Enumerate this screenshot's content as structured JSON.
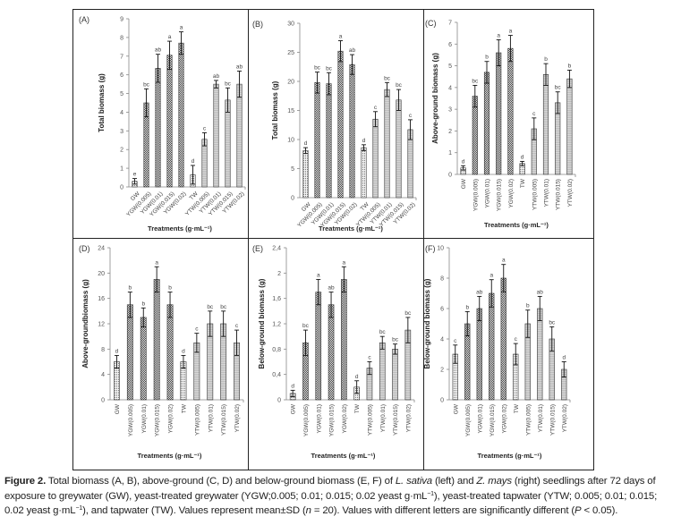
{
  "chart_data": [
    {
      "type": "bar",
      "panel_label": "(A)",
      "ylabel": "Total biomass (g)",
      "xlabel": "Treatments (g·mL⁻¹)",
      "ylim": [
        0,
        9
      ],
      "yticks": [
        "0",
        "1",
        "2",
        "3",
        "4",
        "5",
        "6",
        "7",
        "8",
        "9"
      ],
      "tick_rotation": "diagonal",
      "categories": [
        "GW",
        "YGW(0.005)",
        "YGW(0.01)",
        "YGW(0.015)",
        "YGW(0.02)",
        "TW",
        "YTW(0.005)",
        "YTW(0.01)",
        "YTW(0.015)",
        "YTW(0.02)"
      ],
      "values": [
        0.3,
        4.5,
        6.35,
        7.05,
        7.7,
        0.65,
        2.55,
        5.5,
        4.65,
        5.5
      ],
      "errors": [
        0.15,
        0.75,
        0.75,
        0.75,
        0.6,
        0.5,
        0.35,
        0.2,
        0.65,
        0.7
      ],
      "letters": [
        "e",
        "bc",
        "ab",
        "a",
        "a",
        "d",
        "c",
        "ab",
        "bc",
        "ab"
      ]
    },
    {
      "type": "bar",
      "panel_label": "(B)",
      "ylabel": "Total biomass (g)",
      "xlabel": "Treatments (g·mL⁻¹)",
      "ylim": [
        0,
        30
      ],
      "yticks": [
        "0",
        "5",
        "10",
        "15",
        "20",
        "25",
        "30"
      ],
      "tick_rotation": "diagonal",
      "categories": [
        "GW",
        "YGW(0.005)",
        "YGW(0.01)",
        "YGW(0.015)",
        "YGW(0.02)",
        "TW",
        "YTW(0.005)",
        "YTW(0.01)",
        "YTW(0.015)",
        "YTW(0.02)"
      ],
      "values": [
        8.1,
        19.8,
        19.6,
        25.2,
        22.9,
        8.6,
        13.5,
        18.6,
        16.8,
        11.7
      ],
      "errors": [
        0.5,
        1.8,
        1.9,
        1.8,
        1.7,
        0.5,
        1.3,
        1.2,
        1.8,
        1.7
      ],
      "letters": [
        "d",
        "bc",
        "bc",
        "a",
        "ab",
        "d",
        "c",
        "bc",
        "bc",
        "c"
      ]
    },
    {
      "type": "bar",
      "panel_label": "(C)",
      "ylabel": "Above-ground biomass (g)",
      "xlabel": "Treatments (g·mL⁻¹)",
      "ylim": [
        0,
        7
      ],
      "yticks": [
        "0",
        "1",
        "2",
        "3",
        "4",
        "5",
        "6",
        "7"
      ],
      "tick_rotation": "vertical",
      "categories": [
        "GW",
        "YGW(0.005)",
        "YGW(0.01)",
        "YGW(0.015)",
        "YGW(0.02)",
        "TW",
        "YTW(0.005)",
        "YTW(0.01)",
        "YTW(0.015)",
        "YTW(0.02)"
      ],
      "values": [
        0.3,
        3.6,
        4.7,
        5.6,
        5.8,
        0.5,
        2.1,
        4.6,
        3.3,
        4.4
      ],
      "errors": [
        0.1,
        0.5,
        0.5,
        0.6,
        0.6,
        0.1,
        0.5,
        0.5,
        0.5,
        0.4
      ],
      "letters": [
        "d",
        "bc",
        "b",
        "a",
        "a",
        "d",
        "c",
        "b",
        "bc",
        "b"
      ]
    },
    {
      "type": "bar",
      "panel_label": "(D)",
      "ylabel": "Above-groundbiomass (g)",
      "xlabel": "Treatments (g·mL⁻¹)",
      "ylim": [
        0,
        24
      ],
      "yticks": [
        "0",
        "4",
        "8",
        "12",
        "16",
        "20",
        "24"
      ],
      "tick_rotation": "vertical",
      "categories": [
        "GW",
        "YGW(0.005)",
        "YGW(0.01)",
        "YGW(0.015)",
        "YGW(0.02)",
        "TW",
        "YTW(0.005)",
        "YTW(0.01)",
        "YTW(0.015)",
        "YTW(0.02)"
      ],
      "values": [
        6,
        15,
        13,
        19,
        15,
        6,
        9,
        12,
        12,
        9
      ],
      "errors": [
        1,
        2,
        1.5,
        2,
        2,
        1,
        1.5,
        2,
        2,
        2
      ],
      "letters": [
        "d",
        "b",
        "b",
        "a",
        "b",
        "d",
        "c",
        "bc",
        "bc",
        "c"
      ]
    },
    {
      "type": "bar",
      "panel_label": "(E)",
      "ylabel": "Below-ground biomass (g)",
      "xlabel": "Treatments (g·mL⁻¹)",
      "ylim": [
        0,
        2.4
      ],
      "yticks": [
        "0",
        "0,4",
        "0,8",
        "1,2",
        "1,6",
        "2",
        "2,4"
      ],
      "tick_rotation": "vertical",
      "categories": [
        "GW",
        "YGW(0.005)",
        "YGW(0.01)",
        "YGW(0.015)",
        "YGW(0.02)",
        "TW",
        "YTW(0.005)",
        "YTW(0.01)",
        "YTW(0.015)",
        "YTW(0.02)"
      ],
      "values": [
        0.1,
        0.9,
        1.7,
        1.5,
        1.9,
        0.2,
        0.5,
        0.9,
        0.8,
        1.1
      ],
      "errors": [
        0.05,
        0.2,
        0.2,
        0.2,
        0.2,
        0.1,
        0.1,
        0.1,
        0.08,
        0.2
      ],
      "letters": [
        "d",
        "bc",
        "a",
        "ab",
        "a",
        "d",
        "c",
        "bc",
        "bc",
        "bc"
      ]
    },
    {
      "type": "bar",
      "panel_label": "(F)",
      "ylabel": "Below-ground biomass (g)",
      "xlabel": "Treatments (g·mL⁻¹)",
      "ylim": [
        0,
        10
      ],
      "yticks": [
        "0",
        "2",
        "4",
        "6",
        "8",
        "10"
      ],
      "tick_rotation": "vertical",
      "categories": [
        "GW",
        "YGW(0.005)",
        "YGW(0.01)",
        "YGW(0.015)",
        "YGW(0.02)",
        "TW",
        "YTW(0.005)",
        "YTW(0.01)",
        "YTW(0.015)",
        "YTW(0.02)"
      ],
      "values": [
        3,
        5,
        6,
        7,
        8,
        3,
        5,
        6,
        4,
        2
      ],
      "errors": [
        0.6,
        0.8,
        0.8,
        0.9,
        0.9,
        0.7,
        0.9,
        0.8,
        0.8,
        0.5
      ],
      "letters": [
        "c",
        "b",
        "ab",
        "a",
        "a",
        "c",
        "b",
        "ab",
        "bc",
        "d"
      ]
    }
  ],
  "colors": {
    "ygw_fill": "#6f6f6f",
    "ytw_fill": "#c9c9c9",
    "gw_tw_fill": "#ffffff",
    "axis": "#888888",
    "text": "#333333"
  },
  "caption": {
    "label": "Figure 2.",
    "part1": " Total biomass (A, B), above-ground (C, D) and below-ground biomass (E, F) of ",
    "species1": "L. sativa",
    "part2": " (left) and ",
    "species2": "Z. mays",
    "part3": " (right) seedlings after 72 days of exposure to greywater (GW), yeast-treated greywater (YGW;0.005; 0.01; 0.015; 0.02 yeast g·mL",
    "sup1": "−1",
    "part4": "), yeast-treated tapwater (YTW; 0.005; 0.01; 0.015; 0.02 yeast g·mL",
    "sup2": "−1",
    "part5": "), and tapwater (TW). Values represent mean±SD (",
    "n_italic": "n",
    "part6": " = 20). Values with different letters are significantly different (",
    "p_italic": "P",
    "part7": " < 0.05)."
  }
}
